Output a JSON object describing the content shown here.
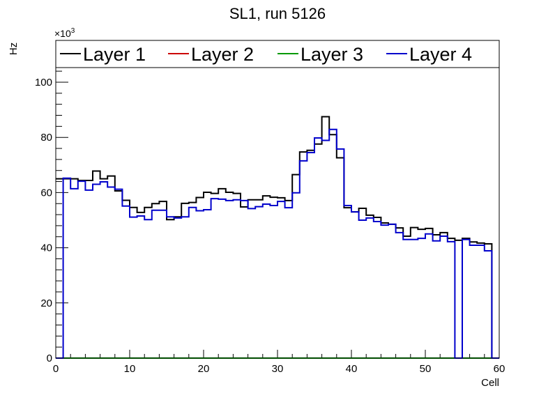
{
  "chart_data": {
    "type": "line",
    "style": "step-histogram",
    "title": "SL1, run 5126",
    "xlabel": "Cell",
    "ylabel": "Hz",
    "y_exponent_label": "×10",
    "y_exponent_power": "3",
    "xlim": [
      0,
      60
    ],
    "ylim": [
      0,
      105.3
    ],
    "x_ticks": [
      "0",
      "10",
      "20",
      "30",
      "40",
      "50",
      "60"
    ],
    "y_ticks": [
      "0",
      "20",
      "40",
      "60",
      "80",
      "100"
    ],
    "legend_position": "top",
    "series": [
      {
        "name": "Layer 1",
        "color": "#000000",
        "values": [
          65,
          65,
          65,
          64.4,
          64.4,
          67.8,
          65,
          66,
          60.6,
          57.2,
          54.6,
          52.8,
          54.6,
          56,
          56.8,
          50.2,
          51.2,
          56.1,
          56.4,
          58.2,
          60.1,
          59.7,
          61.4,
          60.1,
          59.7,
          54.8,
          57.4,
          57.4,
          58.8,
          58.3,
          58.1,
          57.1,
          66.5,
          74.7,
          75.3,
          77.6,
          87.5,
          81,
          72.6,
          54.5,
          53,
          54.3,
          51.8,
          51,
          49,
          48.5,
          47.2,
          44.2,
          47.3,
          46.7,
          47,
          44.7,
          45.5,
          43.4,
          42.7,
          43.4,
          42.1,
          41.7,
          41.4,
          0
        ]
      },
      {
        "name": "Layer 2",
        "color": "#cc0000",
        "values": [
          0,
          0,
          0,
          0,
          0,
          0,
          0,
          0,
          0,
          0,
          0,
          0,
          0,
          0,
          0,
          0,
          0,
          0,
          0,
          0,
          0,
          0,
          0,
          0,
          0,
          0,
          0,
          0,
          0,
          0,
          0,
          0,
          0,
          0,
          0,
          0,
          0,
          0,
          0,
          0,
          0,
          0,
          0,
          0,
          0,
          0,
          0,
          0,
          0,
          0,
          0,
          0,
          0,
          0,
          0,
          0,
          0,
          0,
          0,
          0
        ]
      },
      {
        "name": "Layer 3",
        "color": "#009900",
        "values": [
          0,
          0,
          0,
          0,
          0,
          0,
          0,
          0,
          0,
          0,
          0,
          0,
          0,
          0,
          0,
          0,
          0,
          0,
          0,
          0,
          0,
          0,
          0,
          0,
          0,
          0,
          0,
          0,
          0,
          0,
          0,
          0,
          0,
          0,
          0,
          0,
          0,
          0,
          0,
          0,
          0,
          0,
          0,
          0,
          0,
          0,
          0,
          0,
          0,
          0,
          0,
          0,
          0,
          0,
          0,
          0,
          0,
          0,
          0,
          0
        ]
      },
      {
        "name": "Layer 4",
        "color": "#0000cc",
        "values": [
          0,
          65.2,
          61.4,
          64.1,
          60.9,
          63,
          63.9,
          62,
          61.2,
          55.1,
          51.1,
          51.5,
          50.2,
          53.6,
          53.6,
          51.2,
          50.8,
          51.2,
          54.6,
          53.4,
          53.8,
          57.8,
          57.6,
          57.1,
          57.4,
          57.1,
          54.2,
          54.9,
          55.8,
          55.3,
          56.8,
          54.5,
          59.9,
          71.5,
          74.5,
          79.8,
          78.9,
          82.9,
          75.8,
          55.3,
          53,
          50,
          50.8,
          49.5,
          48.2,
          48.5,
          45.5,
          43,
          43,
          43.4,
          45,
          42.5,
          44.2,
          42.2,
          0,
          43,
          40.9,
          40.9,
          38.9,
          0
        ]
      }
    ]
  }
}
